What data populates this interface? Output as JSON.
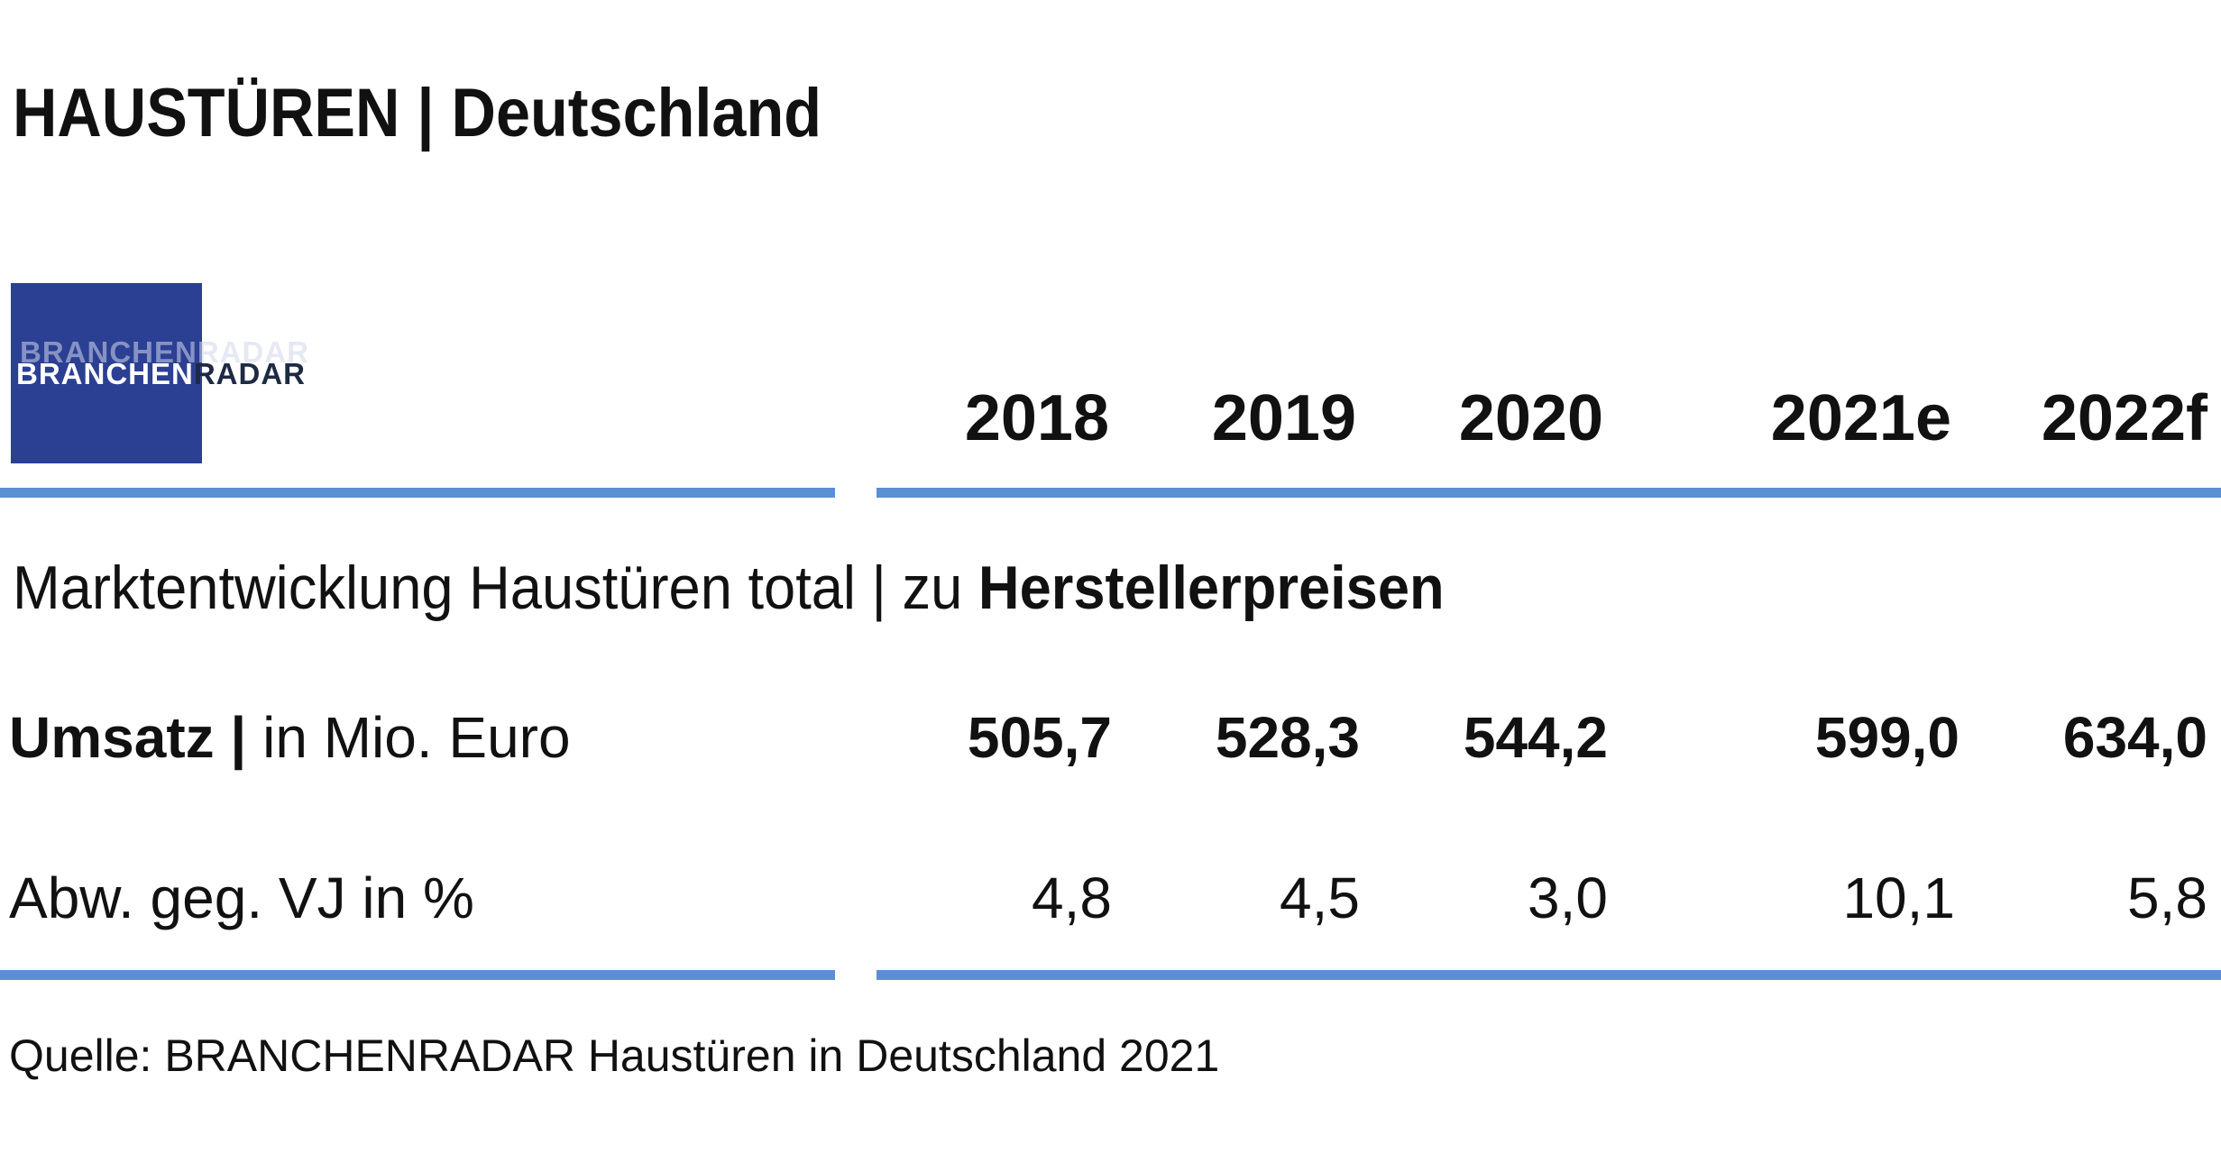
{
  "title": "HAUSTÜREN | Deutschland",
  "logo": {
    "part1": "BRANCHEN",
    "part2": "RADAR",
    "background_color": "#2b3f93"
  },
  "accent_color": "#5b8fd4",
  "subtitle": {
    "text": "Marktentwicklung Haustüren total | zu ",
    "bold": "Herstellerpreisen"
  },
  "chart_data": {
    "type": "table",
    "title": "HAUSTÜREN | Deutschland",
    "columns": [
      "2018",
      "2019",
      "2020",
      "2021e",
      "2022f"
    ],
    "rows": [
      {
        "label_bold": "Umsatz |",
        "label_rest": " in Mio. Euro",
        "values": [
          "505,7",
          "528,3",
          "544,2",
          "599,0",
          "634,0"
        ]
      },
      {
        "label": "Abw. geg. VJ in %",
        "values": [
          "4,8",
          "4,5",
          "3,0",
          "10,1",
          "5,8"
        ]
      }
    ]
  },
  "source": "Quelle: BRANCHENRADAR Haustüren in Deutschland 2021"
}
